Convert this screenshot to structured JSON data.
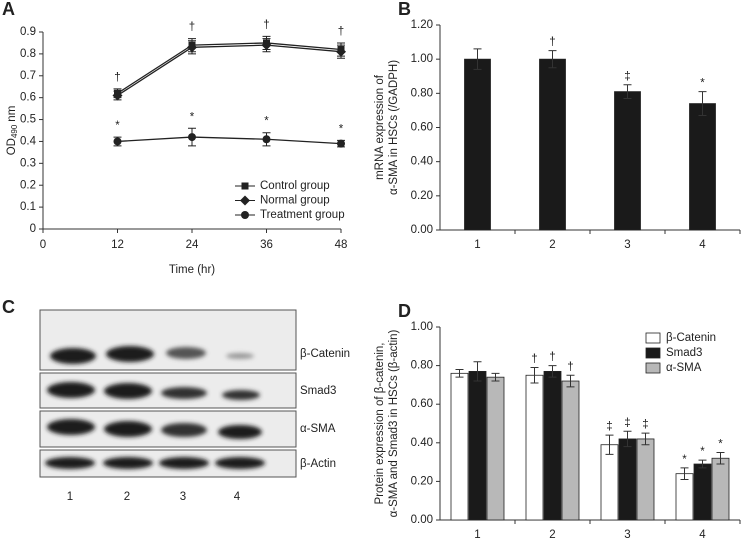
{
  "chart_data": [
    {
      "type": "line",
      "panel": "A",
      "ylabel": [
        "OD",
        "490",
        "nm"
      ],
      "xlabel": "Time (hr)",
      "x": [
        12,
        24,
        36,
        48
      ],
      "xlim": [
        0,
        48
      ],
      "xticks": [
        0,
        12,
        24,
        36,
        48
      ],
      "ylim": [
        0,
        0.9
      ],
      "yticks": [
        0,
        0.1,
        0.2,
        0.3,
        0.4,
        0.5,
        0.6,
        0.7,
        0.8,
        0.9
      ],
      "legend": "lower right",
      "series": [
        {
          "name": "Control group",
          "color": "#222222",
          "marker": "square",
          "values": [
            0.62,
            0.84,
            0.85,
            0.82
          ],
          "errors": [
            0.02,
            0.03,
            0.03,
            0.03
          ],
          "marks": [
            "†",
            "†",
            "†",
            "†"
          ]
        },
        {
          "name": "Normal group",
          "color": "#222222",
          "marker": "diamond",
          "values": [
            0.61,
            0.83,
            0.84,
            0.81
          ],
          "errors": [
            0.02,
            0.03,
            0.03,
            0.03
          ]
        },
        {
          "name": "Treatment group",
          "color": "#222222",
          "marker": "circle",
          "values": [
            0.4,
            0.42,
            0.41,
            0.39
          ],
          "errors": [
            0.02,
            0.04,
            0.03,
            0.015
          ],
          "marks": [
            "*",
            "*",
            "*",
            "*"
          ]
        }
      ]
    },
    {
      "type": "bar",
      "panel": "B",
      "ylabel": [
        "mRNA expression of",
        "α-SMA in HSCs (/GADPH)"
      ],
      "categories": [
        "1",
        "2",
        "3",
        "4"
      ],
      "ylim": [
        0,
        1.2
      ],
      "yticks": [
        {
          "value": 0,
          "label": "0.00"
        },
        {
          "value": 0.2,
          "label": "0.20"
        },
        {
          "value": 0.4,
          "label": "0.40"
        },
        {
          "value": 0.6,
          "label": "0.60"
        },
        {
          "value": 0.8,
          "label": "0.80"
        },
        {
          "value": 1,
          "label": "1.00"
        },
        {
          "value": 1.2,
          "label": "1.20"
        }
      ],
      "series": [
        {
          "color": "#1a1a1a",
          "values": [
            1.0,
            1.0,
            0.81,
            0.74
          ],
          "errors": [
            0.06,
            0.05,
            0.04,
            0.07
          ],
          "marks": [
            null,
            "†",
            "‡",
            "*"
          ]
        }
      ]
    },
    {
      "type": "bar",
      "panel": "D",
      "ylabel": [
        "Protein expression of β-catenin,",
        "α-SMA and Smad3 in HSCs (β-actin)"
      ],
      "categories": [
        "1",
        "2",
        "3",
        "4"
      ],
      "ylim": [
        0,
        1
      ],
      "yticks": [
        {
          "value": 0,
          "label": "0.00"
        },
        {
          "value": 0.2,
          "label": "0.20"
        },
        {
          "value": 0.4,
          "label": "0.40"
        },
        {
          "value": 0.6,
          "label": "0.60"
        },
        {
          "value": 0.8,
          "label": "0.80"
        },
        {
          "value": 1,
          "label": "1.00"
        }
      ],
      "legend": "upper right",
      "series": [
        {
          "name": "β-Catenin",
          "color": "#ffffff",
          "values": [
            0.76,
            0.75,
            0.39,
            0.24
          ],
          "errors": [
            0.02,
            0.04,
            0.05,
            0.03
          ],
          "marks": [
            null,
            "†",
            "‡",
            "*"
          ]
        },
        {
          "name": "Smad3",
          "color": "#1a1a1a",
          "values": [
            0.77,
            0.77,
            0.42,
            0.29
          ],
          "errors": [
            0.05,
            0.03,
            0.04,
            0.02
          ],
          "marks": [
            null,
            "†",
            "‡",
            "*"
          ]
        },
        {
          "name": "α-SMA",
          "color": "#b8b8b8",
          "values": [
            0.74,
            0.72,
            0.42,
            0.32
          ],
          "errors": [
            0.02,
            0.03,
            0.03,
            0.03
          ],
          "marks": [
            null,
            "†",
            "‡",
            "*"
          ]
        }
      ]
    }
  ],
  "blot": {
    "panel": "C",
    "rows": [
      "β-Catenin",
      "Smad3",
      "α-SMA",
      "β-Actin"
    ],
    "lanes": [
      "1",
      "2",
      "3",
      "4"
    ]
  }
}
